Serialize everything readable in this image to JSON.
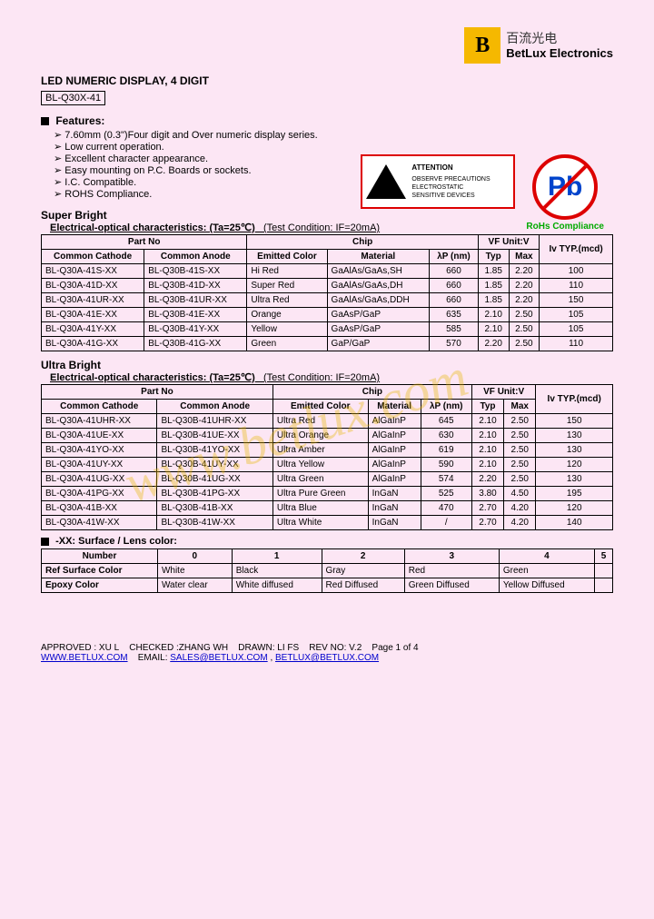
{
  "logo": {
    "cn": "百流光电",
    "en": "BetLux Electronics",
    "mark": "B"
  },
  "title": "LED NUMERIC DISPLAY, 4 DIGIT",
  "part_id": "BL-Q30X-41",
  "features_label": "Features:",
  "features": [
    "7.60mm (0.3\")Four digit and Over numeric display series.",
    "Low current operation.",
    "Excellent character appearance.",
    "Easy mounting on P.C. Boards or sockets.",
    "I.C. Compatible.",
    "ROHS Compliance."
  ],
  "esd": {
    "att": "ATTENTION",
    "line1": "OBSERVE PRECAUTIONS",
    "line2": "ELECTROSTATIC",
    "line3": "SENSITIVE DEVICES"
  },
  "pb": {
    "symbol": "Pb",
    "label": "RoHs Compliance"
  },
  "watermark": "www.betlux.com",
  "sb": {
    "title": "Super Bright",
    "sub": "Electrical-optical characteristics: (Ta=25℃)",
    "cond": "(Test Condition: IF=20mA)",
    "headers": {
      "partno": "Part No",
      "cc": "Common Cathode",
      "ca": "Common Anode",
      "chip": "Chip",
      "ec": "Emitted Color",
      "mat": "Material",
      "wl": "λP (nm)",
      "vf": "VF Unit:V",
      "typ": "Typ",
      "max": "Max",
      "iv": "Iv TYP.(mcd)"
    },
    "rows": [
      {
        "cc": "BL-Q30A-41S-XX",
        "ca": "BL-Q30B-41S-XX",
        "ec": "Hi Red",
        "mat": "GaAlAs/GaAs,SH",
        "wl": "660",
        "typ": "1.85",
        "max": "2.20",
        "iv": "100"
      },
      {
        "cc": "BL-Q30A-41D-XX",
        "ca": "BL-Q30B-41D-XX",
        "ec": "Super Red",
        "mat": "GaAlAs/GaAs,DH",
        "wl": "660",
        "typ": "1.85",
        "max": "2.20",
        "iv": "110"
      },
      {
        "cc": "BL-Q30A-41UR-XX",
        "ca": "BL-Q30B-41UR-XX",
        "ec": "Ultra Red",
        "mat": "GaAlAs/GaAs,DDH",
        "wl": "660",
        "typ": "1.85",
        "max": "2.20",
        "iv": "150"
      },
      {
        "cc": "BL-Q30A-41E-XX",
        "ca": "BL-Q30B-41E-XX",
        "ec": "Orange",
        "mat": "GaAsP/GaP",
        "wl": "635",
        "typ": "2.10",
        "max": "2.50",
        "iv": "105"
      },
      {
        "cc": "BL-Q30A-41Y-XX",
        "ca": "BL-Q30B-41Y-XX",
        "ec": "Yellow",
        "mat": "GaAsP/GaP",
        "wl": "585",
        "typ": "2.10",
        "max": "2.50",
        "iv": "105"
      },
      {
        "cc": "BL-Q30A-41G-XX",
        "ca": "BL-Q30B-41G-XX",
        "ec": "Green",
        "mat": "GaP/GaP",
        "wl": "570",
        "typ": "2.20",
        "max": "2.50",
        "iv": "110"
      }
    ]
  },
  "ub": {
    "title": "Ultra Bright",
    "sub": "Electrical-optical characteristics: (Ta=25℃)",
    "cond": "(Test Condition: IF=20mA)",
    "rows": [
      {
        "cc": "BL-Q30A-41UHR-XX",
        "ca": "BL-Q30B-41UHR-XX",
        "ec": "Ultra Red",
        "mat": "AlGaInP",
        "wl": "645",
        "typ": "2.10",
        "max": "2.50",
        "iv": "150"
      },
      {
        "cc": "BL-Q30A-41UE-XX",
        "ca": "BL-Q30B-41UE-XX",
        "ec": "Ultra Orange",
        "mat": "AlGaInP",
        "wl": "630",
        "typ": "2.10",
        "max": "2.50",
        "iv": "130"
      },
      {
        "cc": "BL-Q30A-41YO-XX",
        "ca": "BL-Q30B-41YO-XX",
        "ec": "Ultra Amber",
        "mat": "AlGaInP",
        "wl": "619",
        "typ": "2.10",
        "max": "2.50",
        "iv": "130"
      },
      {
        "cc": "BL-Q30A-41UY-XX",
        "ca": "BL-Q30B-41UY-XX",
        "ec": "Ultra Yellow",
        "mat": "AlGaInP",
        "wl": "590",
        "typ": "2.10",
        "max": "2.50",
        "iv": "120"
      },
      {
        "cc": "BL-Q30A-41UG-XX",
        "ca": "BL-Q30B-41UG-XX",
        "ec": "Ultra Green",
        "mat": "AlGaInP",
        "wl": "574",
        "typ": "2.20",
        "max": "2.50",
        "iv": "130"
      },
      {
        "cc": "BL-Q30A-41PG-XX",
        "ca": "BL-Q30B-41PG-XX",
        "ec": "Ultra Pure Green",
        "mat": "InGaN",
        "wl": "525",
        "typ": "3.80",
        "max": "4.50",
        "iv": "195"
      },
      {
        "cc": "BL-Q30A-41B-XX",
        "ca": "BL-Q30B-41B-XX",
        "ec": "Ultra Blue",
        "mat": "InGaN",
        "wl": "470",
        "typ": "2.70",
        "max": "4.20",
        "iv": "120"
      },
      {
        "cc": "BL-Q30A-41W-XX",
        "ca": "BL-Q30B-41W-XX",
        "ec": "Ultra White",
        "mat": "InGaN",
        "wl": "/",
        "typ": "2.70",
        "max": "4.20",
        "iv": "140"
      }
    ]
  },
  "lens": {
    "title": "-XX: Surface / Lens color:",
    "headers": [
      "Number",
      "0",
      "1",
      "2",
      "3",
      "4",
      "5"
    ],
    "rows": [
      {
        "k": "Ref Surface Color",
        "v": [
          "White",
          "Black",
          "Gray",
          "Red",
          "Green",
          ""
        ]
      },
      {
        "k": "Epoxy Color",
        "v": [
          "Water clear",
          "White diffused",
          "Red Diffused",
          "Green Diffused",
          "Yellow Diffused",
          ""
        ]
      }
    ]
  },
  "footer": {
    "approved": "APPROVED : XU L",
    "checked": "CHECKED :ZHANG WH",
    "drawn": "DRAWN: LI FS",
    "rev": "REV NO: V.2",
    "page": "Page 1 of 4",
    "www": "WWW.BETLUX.COM",
    "email_label": "EMAIL:",
    "email1": "SALES@BETLUX.COM",
    "sep": ",",
    "email2": "BETLUX@BETLUX.COM"
  }
}
